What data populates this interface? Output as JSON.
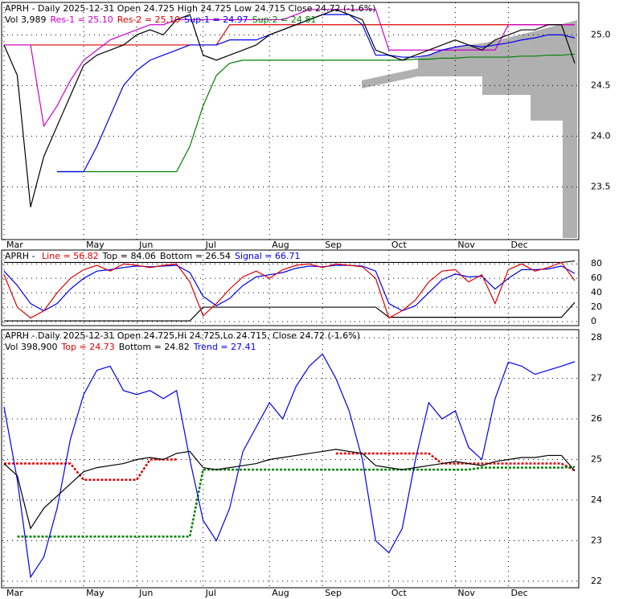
{
  "chart_data": [
    {
      "type": "line",
      "header": [
        [
          {
            "text": "APRH - Daily 2025-12-31 Open 24.725  High 24.725  Low 24.715  Close 24.72 (-1.6%)",
            "color": "#000000"
          }
        ],
        [
          {
            "text": "Vol 3,989",
            "color": "#000000"
          },
          {
            "text": "Res-1 = 25.10",
            "color": "#cc00cc"
          },
          {
            "text": "Res-2 = 25.10",
            "color": "#dd0000"
          },
          {
            "text": "Sup-1 = 24.97",
            "color": "#0000ee"
          },
          {
            "text": "Sup-2 = 24.81",
            "color": "#008000"
          }
        ]
      ],
      "categories": [
        "Mar",
        null,
        null,
        null,
        null,
        null,
        "May",
        null,
        null,
        null,
        "Jun",
        null,
        null,
        null,
        null,
        "Jul",
        null,
        null,
        null,
        null,
        "Aug",
        null,
        null,
        null,
        "Sep",
        null,
        null,
        null,
        null,
        "Oct",
        null,
        null,
        null,
        null,
        "Nov",
        null,
        null,
        null,
        "Dec",
        null,
        null,
        null,
        null,
        null
      ],
      "ylim": [
        22.98,
        25.32
      ],
      "yticks": [
        23.5,
        {
          "value": 24,
          "label": "24.0"
        },
        24.5,
        {
          "value": 25,
          "label": "25.0"
        }
      ],
      "grid": true,
      "series": [
        {
          "color": "#dd0000",
          "values": [
            24.9,
            24.9,
            24.9,
            24.9,
            24.9,
            24.9,
            24.9,
            24.9,
            24.9,
            24.9,
            24.9,
            24.9,
            24.9,
            24.9,
            24.9,
            24.9,
            24.9,
            25.1,
            25.1,
            25.1,
            25.1,
            25.1,
            25.1,
            25.1,
            25.1,
            25.1,
            25.1,
            25.1,
            25.1,
            25.1,
            25.1,
            25.1,
            25.1,
            25.1,
            25.1,
            25.1,
            25.1,
            25.1,
            25.1,
            25.1,
            25.1,
            25.1,
            25.1,
            25.1
          ]
        },
        {
          "color": "#cc00cc",
          "values": [
            24.9,
            24.9,
            24.9,
            24.1,
            24.3,
            24.55,
            24.75,
            24.85,
            24.95,
            25.0,
            25.05,
            25.1,
            25.1,
            25.15,
            25.15,
            25.15,
            25.15,
            25.15,
            25.15,
            25.15,
            25.15,
            25.15,
            25.2,
            25.25,
            25.25,
            25.25,
            25.25,
            25.25,
            25.25,
            24.85,
            24.85,
            24.85,
            24.85,
            24.85,
            24.85,
            24.85,
            24.85,
            24.85,
            25.1,
            25.1,
            25.1,
            25.1,
            25.1,
            25.1
          ]
        },
        {
          "color": "#008000",
          "values": [
            null,
            null,
            null,
            null,
            23.65,
            23.65,
            23.65,
            23.65,
            23.65,
            23.65,
            23.65,
            23.65,
            23.65,
            23.65,
            23.9,
            24.3,
            24.6,
            24.72,
            24.75,
            24.75,
            24.75,
            24.75,
            24.75,
            24.75,
            24.75,
            24.75,
            24.75,
            24.75,
            24.75,
            24.75,
            24.75,
            24.76,
            24.76,
            24.77,
            24.77,
            24.78,
            24.78,
            24.78,
            24.78,
            24.79,
            24.79,
            24.8,
            24.8,
            24.81
          ]
        },
        {
          "color": "#0000ee",
          "values": [
            null,
            null,
            null,
            null,
            23.65,
            23.65,
            23.65,
            23.9,
            24.2,
            24.5,
            24.65,
            24.75,
            24.8,
            24.85,
            24.9,
            24.9,
            24.9,
            24.95,
            24.95,
            24.95,
            25.0,
            25.05,
            25.1,
            25.15,
            25.2,
            25.2,
            25.2,
            25.1,
            24.8,
            24.8,
            24.78,
            24.78,
            24.8,
            24.85,
            24.88,
            24.9,
            24.88,
            24.9,
            24.92,
            24.95,
            24.97,
            25.0,
            25.0,
            24.97
          ]
        },
        {
          "color": "#000000",
          "values": [
            24.9,
            24.6,
            23.3,
            23.8,
            24.1,
            24.4,
            24.7,
            24.8,
            24.85,
            24.9,
            25.0,
            25.05,
            25.0,
            25.15,
            25.2,
            24.8,
            24.75,
            24.8,
            24.85,
            24.9,
            25.0,
            25.05,
            25.1,
            25.15,
            25.2,
            25.25,
            25.2,
            25.15,
            24.85,
            24.8,
            24.75,
            24.8,
            24.85,
            24.9,
            24.95,
            24.9,
            24.85,
            24.95,
            25.0,
            25.05,
            25.05,
            25.1,
            25.1,
            24.72
          ]
        }
      ]
    },
    {
      "type": "line",
      "header": [
        [
          {
            "text": "APRH - ",
            "color": "#000000"
          },
          {
            "text": "Line = 56.82",
            "color": "#dd0000"
          },
          {
            "text": "Top = 84.06",
            "color": "#000000"
          },
          {
            "text": "Bottom = 26.54",
            "color": "#000000"
          },
          {
            "text": "Signal = 66.71",
            "color": "#0000ee"
          }
        ]
      ],
      "ylim": [
        -5.6,
        99.2
      ],
      "yticks": [
        0,
        20,
        40,
        60,
        80
      ],
      "grid": true,
      "series": [
        {
          "color": "#000000",
          "values": [
            82,
            82,
            82,
            82,
            82,
            82,
            82,
            82,
            82,
            82,
            82,
            82,
            82,
            82,
            82,
            82,
            82,
            82,
            82,
            82,
            82,
            82,
            82,
            82,
            82,
            82,
            82,
            82,
            82,
            82,
            82,
            82,
            82,
            82,
            82,
            82,
            82,
            82,
            82,
            82,
            82,
            82,
            82,
            84.06
          ]
        },
        {
          "color": "#000000",
          "values": [
            1,
            1,
            1,
            1,
            1,
            1,
            1,
            1,
            1,
            1,
            1,
            1,
            1,
            1,
            1,
            20,
            20,
            20,
            20,
            20,
            20,
            20,
            20,
            20,
            20,
            20,
            20,
            20,
            20,
            6,
            6,
            6,
            6,
            6,
            6,
            6,
            6,
            6,
            6,
            6,
            6,
            6,
            6,
            26.54
          ]
        },
        {
          "color": "#0000ee",
          "values": [
            70,
            50,
            25,
            15,
            25,
            45,
            60,
            70,
            72,
            75,
            77,
            76,
            77,
            78,
            68,
            35,
            22,
            32,
            50,
            62,
            65,
            68,
            74,
            77,
            76,
            78,
            78,
            77,
            70,
            25,
            15,
            22,
            40,
            58,
            66,
            62,
            63,
            45,
            60,
            72,
            72,
            73,
            77,
            66.71
          ]
        },
        {
          "color": "#dd0000",
          "values": [
            65,
            20,
            5,
            15,
            40,
            60,
            72,
            78,
            70,
            80,
            78,
            75,
            78,
            80,
            55,
            8,
            25,
            45,
            62,
            70,
            60,
            72,
            78,
            80,
            75,
            80,
            78,
            76,
            60,
            5,
            15,
            30,
            55,
            70,
            72,
            55,
            65,
            25,
            72,
            80,
            70,
            75,
            82,
            56.82
          ]
        }
      ]
    },
    {
      "type": "line",
      "header": [
        [
          {
            "text": "APRH - Daily 2025-12-31 Open 24.725,Hi 24.725,Lo 24.715, Close 24.72 (-1.6%)",
            "color": "#000000"
          }
        ],
        [
          {
            "text": "Vol 398,900",
            "color": "#000000"
          },
          {
            "text": "Top = 24.73",
            "color": "#dd0000"
          },
          {
            "text": "Bottom = 24.82",
            "color": "#000000"
          },
          {
            "text": "Trend = 27.41",
            "color": "#0000ee"
          }
        ]
      ],
      "categories": [
        "Mar",
        null,
        null,
        null,
        null,
        null,
        "May",
        null,
        null,
        null,
        "Jun",
        null,
        null,
        null,
        null,
        "Jul",
        null,
        null,
        null,
        null,
        "Aug",
        null,
        null,
        null,
        "Sep",
        null,
        null,
        null,
        null,
        "Oct",
        null,
        null,
        null,
        null,
        "Nov",
        null,
        null,
        null,
        "Dec",
        null,
        null,
        null,
        null,
        null
      ],
      "ylim": [
        21.84,
        28.2
      ],
      "yticks": [
        22,
        23,
        24,
        25,
        26,
        27,
        28
      ],
      "grid": true,
      "series": [
        {
          "color": "#dd0000",
          "dashed": true,
          "values": [
            24.9,
            24.9,
            24.9,
            24.9,
            24.9,
            24.9,
            24.5,
            24.5,
            24.5,
            24.5,
            24.5,
            25.0,
            25.0,
            25.0,
            null,
            null,
            null,
            null,
            null,
            null,
            null,
            null,
            null,
            null,
            null,
            25.15,
            25.15,
            25.15,
            25.15,
            25.15,
            25.15,
            25.15,
            25.15,
            24.9,
            24.9,
            24.9,
            24.9,
            24.9,
            24.9,
            24.9,
            24.9,
            24.9,
            24.9,
            24.73
          ]
        },
        {
          "color": "#008000",
          "dashed": true,
          "values": [
            null,
            23.1,
            23.1,
            23.1,
            23.1,
            23.1,
            23.1,
            23.1,
            23.1,
            23.1,
            23.1,
            23.1,
            23.1,
            23.1,
            23.1,
            24.75,
            24.75,
            24.75,
            24.75,
            24.75,
            24.75,
            24.75,
            24.75,
            24.75,
            24.75,
            24.75,
            24.75,
            24.75,
            24.75,
            24.75,
            24.75,
            24.75,
            24.75,
            24.75,
            24.75,
            24.75,
            24.8,
            24.8,
            24.8,
            24.8,
            24.8,
            24.8,
            24.8,
            24.82
          ]
        },
        {
          "color": "#0000ee",
          "values": [
            26.3,
            24.5,
            22.1,
            22.6,
            23.8,
            25.5,
            26.6,
            27.2,
            27.3,
            26.7,
            26.6,
            26.7,
            26.5,
            26.7,
            25.0,
            23.5,
            23.0,
            23.8,
            25.2,
            25.8,
            26.4,
            26.0,
            26.8,
            27.3,
            27.6,
            27.0,
            26.2,
            25.0,
            23.0,
            22.7,
            23.3,
            25.0,
            26.4,
            26.0,
            26.2,
            25.3,
            25.0,
            26.5,
            27.4,
            27.3,
            27.1,
            27.2,
            27.3,
            27.41
          ]
        },
        {
          "color": "#000000",
          "values": [
            24.9,
            24.6,
            23.3,
            23.8,
            24.1,
            24.4,
            24.7,
            24.8,
            24.85,
            24.9,
            25.0,
            25.05,
            25.0,
            25.15,
            25.2,
            24.8,
            24.75,
            24.8,
            24.85,
            24.9,
            25.0,
            25.05,
            25.1,
            25.15,
            25.2,
            25.25,
            25.2,
            25.15,
            24.85,
            24.8,
            24.75,
            24.8,
            24.85,
            24.9,
            24.95,
            24.9,
            24.85,
            24.95,
            25.0,
            25.05,
            25.05,
            25.1,
            25.1,
            24.72
          ]
        }
      ]
    }
  ]
}
